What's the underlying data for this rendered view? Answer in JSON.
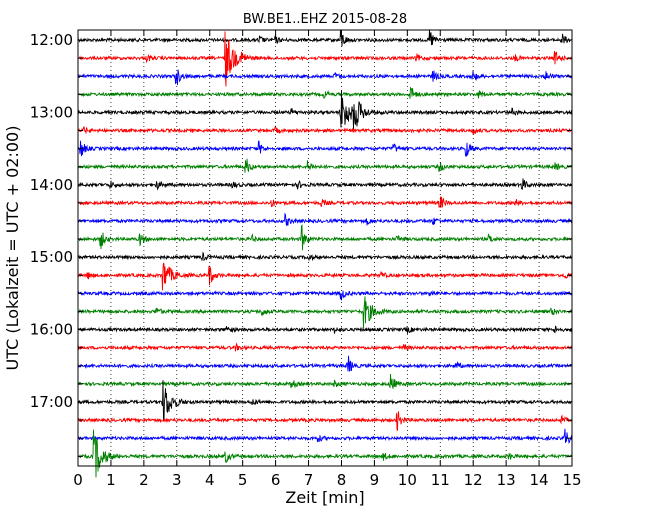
{
  "chart_data": {
    "type": "line",
    "title": "BW.BE1..EHZ 2015-08-28",
    "xlabel": "Zeit  [min]",
    "ylabel": "UTC (Lokalzeit = UTC + 02:00)",
    "xlim": [
      0,
      15
    ],
    "x_ticks": [
      "0",
      "1",
      "2",
      "3",
      "4",
      "5",
      "6",
      "7",
      "8",
      "9",
      "10",
      "11",
      "12",
      "13",
      "14",
      "15"
    ],
    "y_tick_labels": [
      "12:00",
      "13:00",
      "14:00",
      "15:00",
      "16:00",
      "17:00"
    ],
    "y_tick_rows": [
      0,
      4,
      8,
      12,
      16,
      20
    ],
    "grid": "vertical-dotted",
    "row_interval_min": 15,
    "colors": [
      "#000000",
      "#ff0000",
      "#0000ff",
      "#008000"
    ],
    "series": [
      {
        "row": 0,
        "color": "#000000",
        "events": [
          [
            5.5,
            0.4
          ],
          [
            6.0,
            0.3
          ],
          [
            8.0,
            0.9
          ],
          [
            10.7,
            1.0
          ],
          [
            14.7,
            0.6
          ]
        ]
      },
      {
        "row": 1,
        "color": "#ff0000",
        "events": [
          [
            2.1,
            0.3
          ],
          [
            4.5,
            2.8
          ],
          [
            5.0,
            0.4
          ],
          [
            10.3,
            0.3
          ],
          [
            13.3,
            0.3
          ],
          [
            14.5,
            0.7
          ]
        ]
      },
      {
        "row": 2,
        "color": "#0000ff",
        "events": [
          [
            3.0,
            0.9
          ],
          [
            7.8,
            0.3
          ],
          [
            10.8,
            0.5
          ],
          [
            12.0,
            0.5
          ],
          [
            14.2,
            0.5
          ]
        ]
      },
      {
        "row": 3,
        "color": "#008000",
        "events": [
          [
            7.5,
            0.3
          ],
          [
            10.1,
            0.9
          ],
          [
            12.2,
            0.3
          ]
        ]
      },
      {
        "row": 4,
        "color": "#000000",
        "events": [
          [
            6.5,
            0.3
          ],
          [
            8.0,
            2.5
          ],
          [
            8.4,
            1.6
          ],
          [
            13.2,
            0.3
          ]
        ]
      },
      {
        "row": 5,
        "color": "#ff0000",
        "events": [
          [
            0.2,
            0.3
          ],
          [
            6.0,
            0.3
          ],
          [
            12.0,
            0.3
          ]
        ]
      },
      {
        "row": 6,
        "color": "#0000ff",
        "events": [
          [
            0.1,
            0.9
          ],
          [
            5.5,
            0.6
          ],
          [
            9.6,
            0.4
          ],
          [
            11.8,
            0.8
          ]
        ]
      },
      {
        "row": 7,
        "color": "#008000",
        "events": [
          [
            5.1,
            0.9
          ],
          [
            7.0,
            0.5
          ],
          [
            11.0,
            0.4
          ],
          [
            14.5,
            0.3
          ]
        ]
      },
      {
        "row": 8,
        "color": "#000000",
        "events": [
          [
            1.0,
            0.3
          ],
          [
            2.4,
            0.4
          ],
          [
            4.7,
            0.3
          ],
          [
            6.7,
            0.3
          ],
          [
            13.5,
            0.6
          ]
        ]
      },
      {
        "row": 9,
        "color": "#ff0000",
        "events": [
          [
            5.9,
            0.3
          ],
          [
            7.4,
            0.3
          ],
          [
            11.0,
            0.7
          ],
          [
            13.3,
            0.3
          ]
        ]
      },
      {
        "row": 10,
        "color": "#0000ff",
        "events": [
          [
            6.3,
            0.6
          ],
          [
            8.8,
            0.3
          ],
          [
            10.8,
            0.3
          ]
        ]
      },
      {
        "row": 11,
        "color": "#008000",
        "events": [
          [
            0.7,
            0.9
          ],
          [
            1.9,
            0.6
          ],
          [
            5.3,
            0.3
          ],
          [
            6.8,
            1.3
          ],
          [
            9.7,
            0.3
          ],
          [
            12.5,
            0.4
          ]
        ]
      },
      {
        "row": 12,
        "color": "#000000",
        "events": [
          [
            3.8,
            0.3
          ],
          [
            7.0,
            0.3
          ]
        ]
      },
      {
        "row": 13,
        "color": "#ff0000",
        "events": [
          [
            0.3,
            0.3
          ],
          [
            2.6,
            1.6
          ],
          [
            4.0,
            1.0
          ],
          [
            9.2,
            0.3
          ],
          [
            14.8,
            0.3
          ]
        ]
      },
      {
        "row": 14,
        "color": "#0000ff",
        "events": [
          [
            8.0,
            0.6
          ],
          [
            10.7,
            0.3
          ]
        ]
      },
      {
        "row": 15,
        "color": "#008000",
        "events": [
          [
            2.4,
            0.4
          ],
          [
            5.6,
            0.4
          ],
          [
            8.7,
            1.6
          ],
          [
            14.4,
            0.3
          ]
        ]
      },
      {
        "row": 16,
        "color": "#000000",
        "events": [
          [
            4.5,
            0.4
          ],
          [
            7.8,
            0.3
          ],
          [
            10.0,
            0.3
          ],
          [
            14.5,
            0.3
          ]
        ]
      },
      {
        "row": 17,
        "color": "#ff0000",
        "events": [
          [
            4.8,
            0.3
          ],
          [
            9.9,
            0.3
          ]
        ]
      },
      {
        "row": 18,
        "color": "#0000ff",
        "events": [
          [
            8.2,
            1.0
          ],
          [
            11.5,
            0.3
          ]
        ]
      },
      {
        "row": 19,
        "color": "#008000",
        "events": [
          [
            6.5,
            0.4
          ],
          [
            9.5,
            1.0
          ],
          [
            7.8,
            0.3
          ]
        ]
      },
      {
        "row": 20,
        "color": "#000000",
        "events": [
          [
            2.6,
            2.2
          ],
          [
            5.3,
            0.3
          ]
        ]
      },
      {
        "row": 21,
        "color": "#ff0000",
        "events": [
          [
            9.7,
            1.0
          ],
          [
            14.7,
            0.3
          ]
        ]
      },
      {
        "row": 22,
        "color": "#0000ff",
        "events": [
          [
            14.8,
            0.9
          ],
          [
            7.3,
            0.3
          ]
        ]
      },
      {
        "row": 23,
        "color": "#008000",
        "events": [
          [
            0.5,
            2.6
          ],
          [
            4.5,
            0.6
          ],
          [
            9.3,
            0.3
          ],
          [
            13.1,
            0.3
          ]
        ]
      }
    ]
  }
}
